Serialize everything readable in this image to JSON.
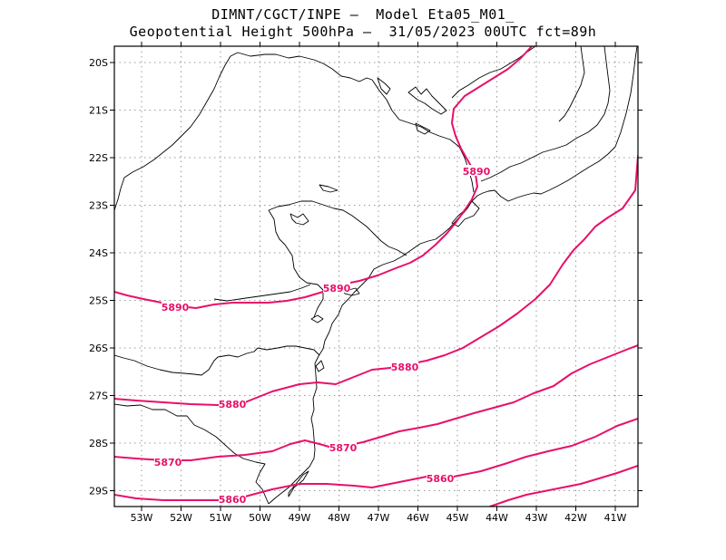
{
  "title": {
    "line1": "DIMNT/CGCT/INPE –  Model Eta05_M01_",
    "line2": "Geopotential Height 500hPa –  31/05/2023 00UTC fct=89h"
  },
  "colors": {
    "contour": "#e8106a",
    "coast": "#000000",
    "grid": "#9a9a9a"
  },
  "axes": {
    "lat_labels": [
      "20S",
      "21S",
      "22S",
      "23S",
      "24S",
      "25S",
      "26S",
      "27S",
      "28S",
      "29S"
    ],
    "lon_labels": [
      "53W",
      "52W",
      "51W",
      "50W",
      "49W",
      "48W",
      "47W",
      "46W",
      "45W",
      "44W",
      "43W",
      "42W",
      "41W"
    ]
  },
  "contours": [
    {
      "label": "5890",
      "level": 5890
    },
    {
      "label": "5880",
      "level": 5880
    },
    {
      "label": "5870",
      "level": 5870
    },
    {
      "label": "5860",
      "level": 5860
    }
  ],
  "contour_labels": [
    {
      "text": "5890"
    },
    {
      "text": "5890"
    },
    {
      "text": "5890"
    },
    {
      "text": "5880"
    },
    {
      "text": "5880"
    },
    {
      "text": "5870"
    },
    {
      "text": "5870"
    },
    {
      "text": "5860"
    },
    {
      "text": "5860"
    }
  ]
}
